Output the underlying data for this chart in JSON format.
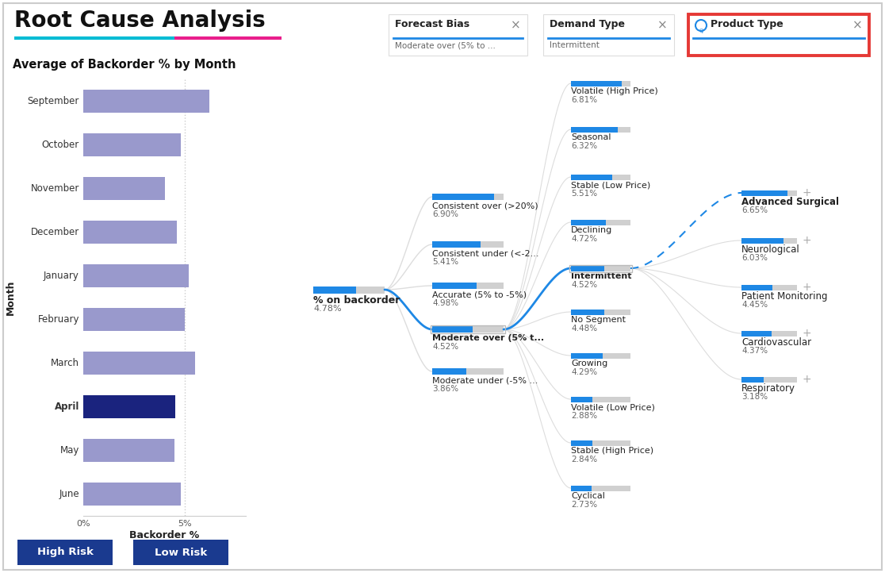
{
  "title": "Root Cause Analysis",
  "bar_chart_title": "Average of Backorder % by Month",
  "months": [
    "September",
    "October",
    "November",
    "December",
    "January",
    "February",
    "March",
    "April",
    "May",
    "June"
  ],
  "month_values": [
    6.2,
    4.8,
    4.0,
    4.6,
    5.2,
    5.0,
    5.5,
    4.52,
    4.5,
    4.8
  ],
  "bar_color_default": "#9999cc",
  "bar_color_selected": "#1a237e",
  "selected_month": "April",
  "btn1_label": "High Risk",
  "btn2_label": "Low Risk",
  "btn_color": "#1a3a8f",
  "filter_box1_title": "Forecast Bias",
  "filter_box1_value": "Moderate over (5% to ...",
  "filter_box2_title": "Demand Type",
  "filter_box2_value": "Intermittent",
  "filter_box3_title": "Product Type",
  "root_node_label": "% on backorder",
  "root_node_value": "4.78%",
  "root_bar_value": 4.78,
  "forecast_nodes": [
    {
      "label": "Consistent over (>20%)",
      "value": "6.90%",
      "val": 6.9,
      "selected": false
    },
    {
      "label": "Consistent under (<-2...",
      "value": "5.41%",
      "val": 5.41,
      "selected": false
    },
    {
      "label": "Accurate (5% to -5%)",
      "value": "4.98%",
      "val": 4.98,
      "selected": false
    },
    {
      "label": "Moderate over (5% t...",
      "value": "4.52%",
      "val": 4.52,
      "selected": true
    },
    {
      "label": "Moderate under (-5% ...",
      "value": "3.86%",
      "val": 3.86,
      "selected": false
    }
  ],
  "demand_nodes": [
    {
      "label": "Volatile (High Price)",
      "value": "6.81%",
      "val": 6.81,
      "selected": false
    },
    {
      "label": "Seasonal",
      "value": "6.32%",
      "val": 6.32,
      "selected": false
    },
    {
      "label": "Stable (Low Price)",
      "value": "5.51%",
      "val": 5.51,
      "selected": false
    },
    {
      "label": "Declining",
      "value": "4.72%",
      "val": 4.72,
      "selected": false
    },
    {
      "label": "Intermittent",
      "value": "4.52%",
      "val": 4.52,
      "selected": true
    },
    {
      "label": "No Segment",
      "value": "4.48%",
      "val": 4.48,
      "selected": false
    },
    {
      "label": "Growing",
      "value": "4.29%",
      "val": 4.29,
      "selected": false
    },
    {
      "label": "Volatile (Low Price)",
      "value": "2.88%",
      "val": 2.88,
      "selected": false
    },
    {
      "label": "Stable (High Price)",
      "value": "2.84%",
      "val": 2.84,
      "selected": false
    },
    {
      "label": "Cyclical",
      "value": "2.73%",
      "val": 2.73,
      "selected": false
    }
  ],
  "product_nodes": [
    {
      "label": "Advanced Surgical",
      "value": "6.65%",
      "val": 6.65,
      "bold": true
    },
    {
      "label": "Neurological",
      "value": "6.03%",
      "val": 6.03,
      "bold": false
    },
    {
      "label": "Patient Monitoring",
      "value": "4.45%",
      "val": 4.45,
      "bold": false
    },
    {
      "label": "Cardiovascular",
      "value": "4.37%",
      "val": 4.37,
      "bold": false
    },
    {
      "label": "Respiratory",
      "value": "3.18%",
      "val": 3.18,
      "bold": false
    }
  ],
  "bar_max_val": 8.0,
  "blue_bar": "#1e88e5",
  "gray_bar": "#d0d0d0",
  "blue_line": "#1e88e5",
  "gray_line": "#cccccc",
  "red_border": "#e53935",
  "bg": "#ffffff"
}
